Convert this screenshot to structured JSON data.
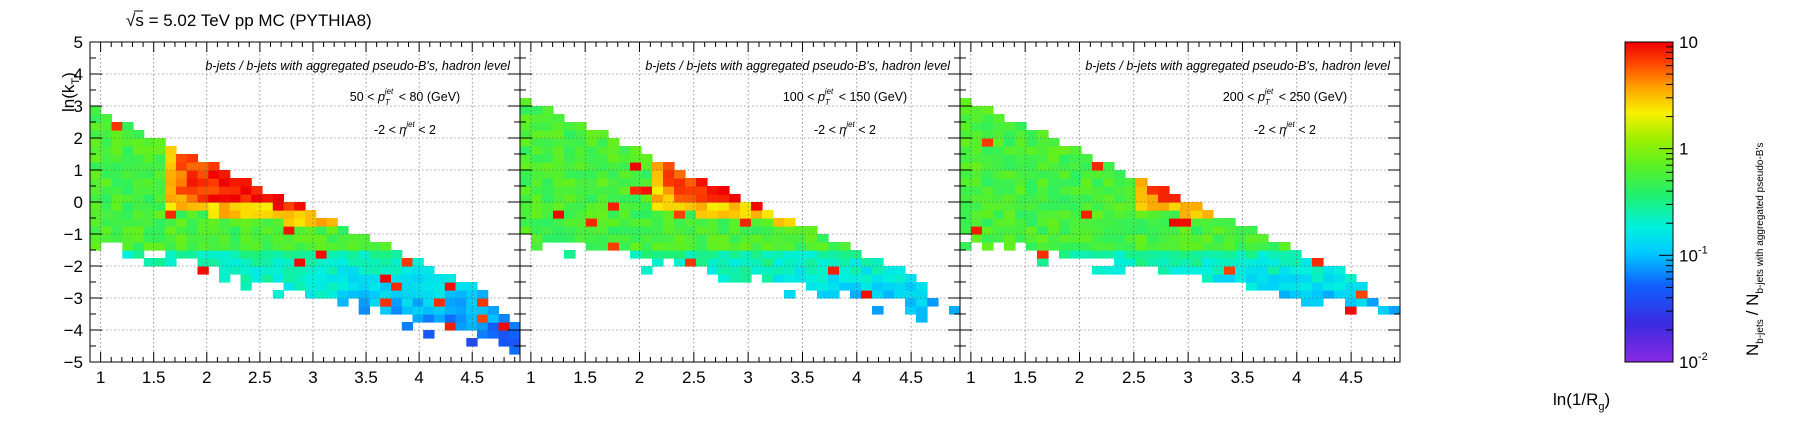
{
  "chart_data": {
    "type": "heatmap",
    "header": "√s = 5.02 TeV pp MC (PYTHIA8)",
    "sqrt_symbol": "√",
    "header_rest": "s = 5.02 TeV pp MC (PYTHIA8)",
    "xlabel": "ln(1/Rg)",
    "xlabel_main": "ln(1/R",
    "xlabel_sub": "g",
    "xlabel_close": ")",
    "ylabel": "ln(kT)",
    "ylabel_main": "ln(k",
    "ylabel_sub": "T",
    "ylabel_close": ")",
    "x_ticks": [
      "1",
      "1.5",
      "2",
      "2.5",
      "3",
      "3.5",
      "4",
      "4.5"
    ],
    "y_ticks": [
      "5",
      "4",
      "3",
      "2",
      "1",
      "0",
      "−1",
      "−2",
      "−3",
      "−4",
      "−5"
    ],
    "xlim": [
      0.9,
      4.95
    ],
    "ylim": [
      -5,
      5
    ],
    "grid": true,
    "colorbar": {
      "scale": "log",
      "range": [
        0.01,
        10
      ],
      "label": "N_b-jets / N_b-jets with aggregated pseudo-B's",
      "label_main1": "N",
      "label_sub1": "b-jets",
      "label_mid": "/ N",
      "label_sub2": "b-jets with aggregated pseudo-B's",
      "ticks": [
        {
          "mant": "10",
          "exp": "-2"
        },
        {
          "mant": "10",
          "exp": "-1"
        },
        {
          "mant": "1",
          "exp": ""
        },
        {
          "mant": "10",
          "exp": ""
        }
      ]
    },
    "panels": [
      {
        "title": "b-jets / b-jets with aggregated pseudo-B's, hadron level",
        "pt_range": "50 < p_T^jet < 80 (GeV)",
        "pt_low": "50 <",
        "pt_high": "< 80 (GeV)",
        "eta_range": "-2 < η^jet < 2",
        "eta_low": "-2 <",
        "eta_high": "< 2",
        "peak_x": 2.5,
        "start_x": 0.95
      },
      {
        "title": "b-jets / b-jets with aggregated pseudo-B's, hadron level",
        "pt_range": "100 < p_T^jet < 150 (GeV)",
        "pt_low": "100 <",
        "pt_high": "< 150 (GeV)",
        "eta_range": "-2 < η^jet < 2",
        "eta_low": "-2 <",
        "eta_high": "< 2",
        "peak_x": 3.0,
        "start_x": 0.9
      },
      {
        "title": "b-jets / b-jets with aggregated pseudo-B's, hadron level",
        "pt_range": "200 < p_T^jet < 250 (GeV)",
        "pt_low": "200 <",
        "pt_high": "< 250 (GeV)",
        "eta_range": "-2 < η^jet < 2",
        "eta_low": "-2 <",
        "eta_high": "< 2",
        "peak_x": 3.4,
        "start_x": 0.9
      }
    ]
  }
}
